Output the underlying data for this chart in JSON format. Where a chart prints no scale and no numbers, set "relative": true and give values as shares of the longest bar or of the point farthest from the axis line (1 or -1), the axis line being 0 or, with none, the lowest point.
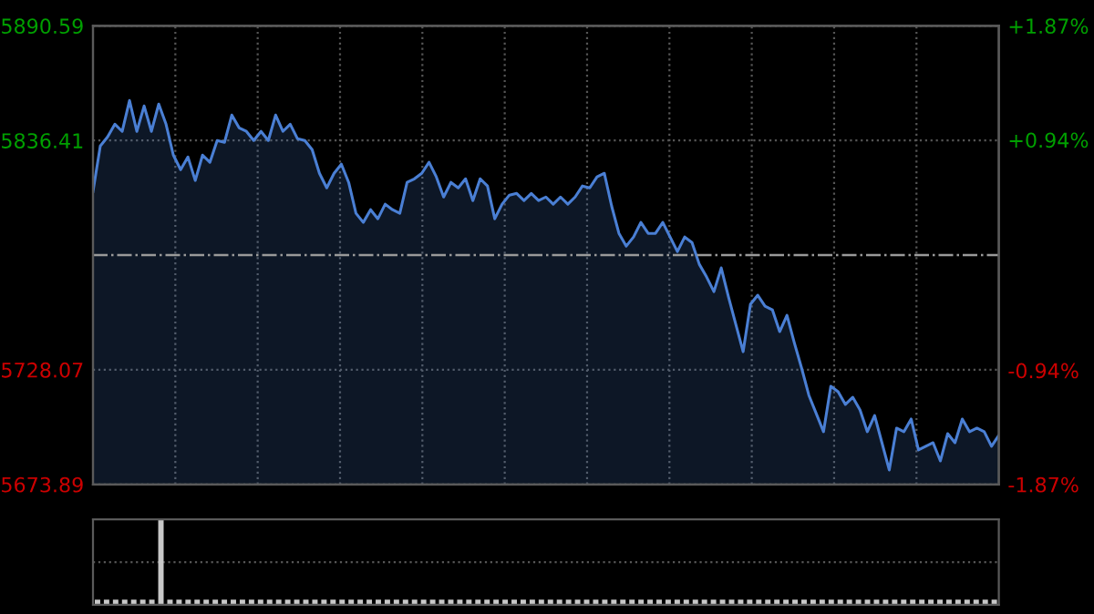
{
  "chart_data": [
    {
      "type": "area",
      "categories": [
        null,
        null,
        null,
        null,
        null,
        null,
        null,
        null,
        null,
        null,
        null,
        null,
        null,
        null,
        null,
        null,
        null,
        null,
        null,
        null,
        null,
        null,
        null,
        null,
        null,
        null,
        null,
        null,
        null,
        null,
        null,
        null,
        null,
        null,
        null,
        null,
        null,
        null,
        null,
        null,
        null,
        null,
        null,
        null,
        null,
        null,
        null,
        null,
        null,
        null,
        null,
        null,
        null,
        null,
        null,
        null,
        null,
        null,
        null,
        null,
        null,
        null,
        null,
        null,
        null,
        null,
        null,
        null,
        null,
        null,
        null,
        null,
        null,
        null,
        null,
        null,
        null,
        null,
        null,
        null,
        null,
        null,
        null,
        null,
        null,
        null,
        null,
        null,
        null,
        null,
        null,
        null,
        null,
        null,
        null,
        null,
        null,
        null,
        null,
        null,
        null,
        null,
        null,
        null,
        null,
        null,
        null,
        null,
        null,
        null,
        null,
        null,
        null,
        null,
        null,
        null,
        null,
        null,
        null,
        null,
        null,
        null,
        null,
        null,
        null
      ],
      "series": [
        {
          "color": "#4a7fd4",
          "values": [
            5812.3,
            5833.8,
            5838.1,
            5844.1,
            5840.7,
            5855.3,
            5840.7,
            5852.7,
            5840.7,
            5853.6,
            5844.1,
            5829.5,
            5822.6,
            5828.6,
            5817.5,
            5829.5,
            5826.1,
            5836.4,
            5835.5,
            5848.4,
            5842.4,
            5840.7,
            5836.4,
            5840.7,
            5836.4,
            5848.4,
            5840.7,
            5844.1,
            5837.2,
            5836.4,
            5832.1,
            5820.9,
            5814.0,
            5820.9,
            5825.2,
            5816.6,
            5802.0,
            5797.7,
            5803.7,
            5799.4,
            5806.3,
            5803.7,
            5802.0,
            5816.6,
            5818.3,
            5820.9,
            5826.1,
            5819.2,
            5809.7,
            5816.6,
            5814.0,
            5818.3,
            5808.0,
            5818.3,
            5814.9,
            5799.4,
            5806.3,
            5810.6,
            5811.4,
            5808.0,
            5811.4,
            5808.0,
            5809.7,
            5806.3,
            5809.7,
            5806.3,
            5809.7,
            5814.9,
            5814.0,
            5819.2,
            5820.9,
            5805.4,
            5792.5,
            5786.5,
            5790.8,
            5797.7,
            5792.5,
            5792.5,
            5797.7,
            5790.8,
            5783.9,
            5790.8,
            5788.2,
            5777.9,
            5771.9,
            5765.0,
            5776.2,
            5762.4,
            5749.5,
            5736.6,
            5759.0,
            5763.3,
            5758.1,
            5756.4,
            5746.1,
            5753.8,
            5740.9,
            5728.9,
            5716.0,
            5707.4,
            5698.8,
            5720.3,
            5717.7,
            5711.7,
            5715.1,
            5709.1,
            5698.8,
            5706.5,
            5693.6,
            5680.7,
            5700.5,
            5698.8,
            5704.8,
            5690.2,
            5691.9,
            5693.6,
            5685.0,
            5697.9,
            5693.6,
            5704.8,
            5698.8,
            5700.5,
            5698.8,
            5691.9,
            5697.1
          ]
        }
      ],
      "ylim": [
        5673.89,
        5890.59
      ],
      "yticks": [
        5673.89,
        5728.07,
        5836.41,
        5890.59
      ],
      "y2lim": [
        -1.87,
        1.87
      ],
      "y2ticks": [
        {
          "value": -1.87,
          "label": "-1.87%"
        },
        {
          "value": -0.94,
          "label": "-0.94%"
        },
        {
          "value": 0.94,
          "label": "+0.94%"
        },
        {
          "value": 1.87,
          "label": "+1.87%"
        }
      ],
      "ref_lines": [
        {
          "axis": "y",
          "value": 5782.24,
          "color": "#9a9a9a",
          "line_style": "dashdot"
        }
      ],
      "grid": true,
      "tick_labels": "y"
    },
    {
      "type": "bar",
      "relative": true,
      "color": "#c8c8c8",
      "tick_labels": false,
      "ref_lines": [
        {
          "axis": "y",
          "value": 0.5,
          "color": "#555555",
          "line_style": "dotted"
        }
      ],
      "categories": [
        null,
        null,
        null,
        null,
        null,
        null,
        null,
        null,
        null,
        null,
        null,
        null,
        null,
        null,
        null,
        null,
        null,
        null,
        null,
        null,
        null,
        null,
        null,
        null,
        null,
        null,
        null,
        null,
        null,
        null,
        null,
        null,
        null,
        null,
        null,
        null,
        null,
        null,
        null,
        null,
        null,
        null,
        null,
        null,
        null,
        null,
        null,
        null,
        null,
        null,
        null,
        null,
        null,
        null,
        null,
        null,
        null,
        null,
        null,
        null,
        null,
        null,
        null,
        null,
        null,
        null,
        null,
        null,
        null,
        null,
        null,
        null,
        null,
        null,
        null,
        null,
        null,
        null,
        null,
        null,
        null,
        null,
        null,
        null,
        null,
        null,
        null,
        null,
        null,
        null,
        null,
        null,
        null,
        null,
        null,
        null,
        null,
        null,
        null,
        null
      ],
      "values": [
        0.06,
        0.06,
        0.06,
        0.06,
        0.06,
        0.06,
        0.06,
        1,
        0.06,
        0.06,
        0.06,
        0.06,
        0.06,
        0.06,
        0.06,
        0.06,
        0.06,
        0.06,
        0.06,
        0.06,
        0.06,
        0.06,
        0.06,
        0.06,
        0.06,
        0.06,
        0.06,
        0.06,
        0.06,
        0.06,
        0.06,
        0.06,
        0.06,
        0.06,
        0.06,
        0.06,
        0.06,
        0.06,
        0.06,
        0.06,
        0.06,
        0.06,
        0.06,
        0.06,
        0.06,
        0.06,
        0.06,
        0.06,
        0.06,
        0.06,
        0.06,
        0.06,
        0.06,
        0.06,
        0.06,
        0.06,
        0.06,
        0.06,
        0.06,
        0.06,
        0.06,
        0.06,
        0.06,
        0.06,
        0.06,
        0.06,
        0.06,
        0.06,
        0.06,
        0.06,
        0.06,
        0.06,
        0.06,
        0.06,
        0.06,
        0.06,
        0.06,
        0.06,
        0.06,
        0.06,
        0.06,
        0.06,
        0.06,
        0.06,
        0.06,
        0.06,
        0.06,
        0.06,
        0.06,
        0.06,
        0.06,
        0.06,
        0.06,
        0.06,
        0.06,
        0.06,
        0.06,
        0.06,
        0.06,
        0.06
      ]
    }
  ]
}
